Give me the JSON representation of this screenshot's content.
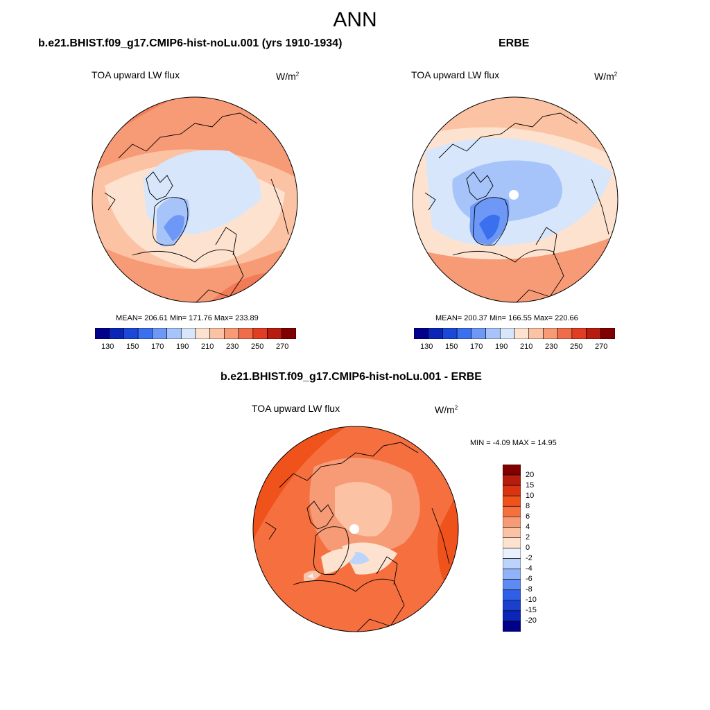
{
  "figure_title": "ANN",
  "panels": [
    {
      "run_title": "b.e21.BHIST.f09_g17.CMIP6-hist-noLu.001 (yrs 1910-1934)",
      "variable": "TOA upward LW flux",
      "units_base": "W/m",
      "units_exp": "2",
      "stats": "MEAN= 206.61  Min= 171.76  Max= 233.89",
      "colorbar_ticks": [
        "130",
        "150",
        "170",
        "190",
        "210",
        "230",
        "250",
        "270"
      ]
    },
    {
      "run_title": "ERBE",
      "variable": "TOA upward LW flux",
      "units_base": "W/m",
      "units_exp": "2",
      "stats": "MEAN= 200.37  Min= 166.55  Max= 220.66",
      "colorbar_ticks": [
        "130",
        "150",
        "170",
        "190",
        "210",
        "230",
        "250",
        "270"
      ]
    },
    {
      "run_title": "b.e21.BHIST.f09_g17.CMIP6-hist-noLu.001 - ERBE",
      "variable": "TOA upward LW flux",
      "units_base": "W/m",
      "units_exp": "2",
      "stats": "MIN =  -4.09 MAX =  14.95",
      "colorbar_ticks": [
        "20",
        "15",
        "10",
        "8",
        "6",
        "4",
        "2",
        "0",
        "-2",
        "-4",
        "-6",
        "-8",
        "-10",
        "-15",
        "-20"
      ]
    }
  ],
  "colors": {
    "abs_scale": [
      "#00008b",
      "#0a25b8",
      "#1b48d9",
      "#3a6ff0",
      "#6e98f5",
      "#a6c4fa",
      "#d7e6fb",
      "#fde3cf",
      "#fbc3a3",
      "#f79a76",
      "#f06c4a",
      "#e03d22",
      "#b81c0e",
      "#800000"
    ],
    "diff_scale": [
      "#800000",
      "#b81c0e",
      "#d9330f",
      "#f0521c",
      "#f56f3f",
      "#f79a76",
      "#fbc3a3",
      "#fde3cf",
      "#e9f1fc",
      "#bcd4fb",
      "#8fb2f8",
      "#5d8bf3",
      "#2f5fe6",
      "#1a3fcc",
      "#0a25b8",
      "#00008b"
    ]
  }
}
